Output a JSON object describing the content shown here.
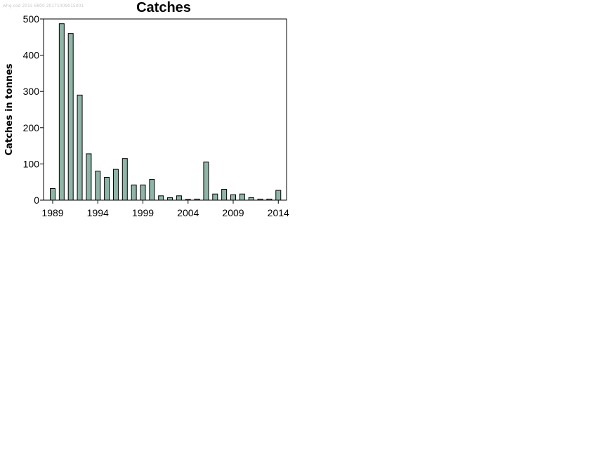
{
  "watermark": "whg-cod 2015 6800 20171009015001",
  "chart_data": {
    "type": "bar",
    "title": "Catches",
    "xlabel": "",
    "ylabel": "Catches in tonnes",
    "x": [
      1989,
      1990,
      1991,
      1992,
      1993,
      1994,
      1995,
      1996,
      1997,
      1998,
      1999,
      2000,
      2001,
      2002,
      2003,
      2004,
      2005,
      2006,
      2007,
      2008,
      2009,
      2010,
      2011,
      2012,
      2013,
      2014
    ],
    "values": [
      32,
      487,
      460,
      290,
      128,
      80,
      63,
      85,
      115,
      42,
      42,
      57,
      12,
      7,
      12,
      2,
      3,
      105,
      17,
      30,
      15,
      17,
      7,
      3,
      3,
      27
    ],
    "ylim": [
      0,
      500
    ],
    "yticks": [
      0,
      100,
      200,
      300,
      400,
      500
    ],
    "xticks": [
      1989,
      1994,
      1999,
      2004,
      2009,
      2014
    ],
    "bar_color": "#8fb5a6",
    "grid": false,
    "legend": "none"
  }
}
